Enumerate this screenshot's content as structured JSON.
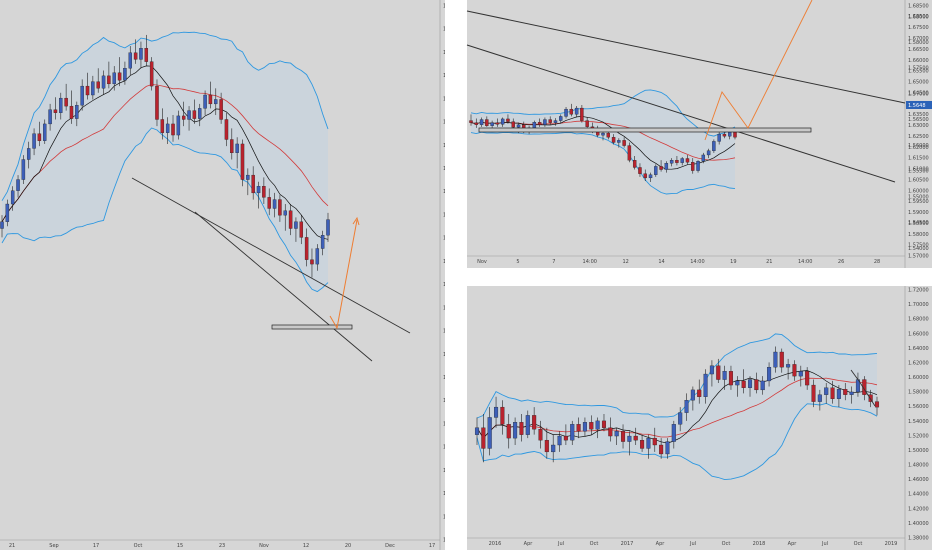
{
  "layout_note": "",
  "chart_data": [
    {
      "id": "left",
      "type": "candlestick",
      "title": "",
      "x_ticks": [
        "21",
        "Sep",
        "17",
        "Oct",
        "15",
        "23",
        "Nov",
        "12",
        "20",
        "Dec",
        "17"
      ],
      "y_ticks": [
        "1.61000",
        "1.60500",
        "1.60000",
        "1.59500",
        "1.59000",
        "1.58500",
        "1.58000",
        "1.57500",
        "1.57000",
        "1.56500",
        "1.56000",
        "1.55500",
        "1.55000",
        "1.54500",
        "1.54000",
        "1.53500",
        "1.53000",
        "1.52500",
        "1.52000",
        "1.51500",
        "1.51000",
        "1.50500",
        "1.50000",
        "1.49500"
      ],
      "ylim": [
        1.4925,
        1.6125
      ],
      "xlim": [
        0,
        110
      ],
      "ohlc": [
        [
          1.5625,
          1.5655,
          1.5605,
          1.564
        ],
        [
          1.564,
          1.569,
          1.563,
          1.568
        ],
        [
          1.568,
          1.572,
          1.5665,
          1.571
        ],
        [
          1.571,
          1.5745,
          1.5695,
          1.5735
        ],
        [
          1.5735,
          1.579,
          1.5725,
          1.578
        ],
        [
          1.578,
          1.582,
          1.576,
          1.5805
        ],
        [
          1.5805,
          1.585,
          1.579,
          1.5838
        ],
        [
          1.5838,
          1.5865,
          1.581,
          1.5822
        ],
        [
          1.5822,
          1.587,
          1.5815,
          1.586
        ],
        [
          1.586,
          1.5905,
          1.5845,
          1.5892
        ],
        [
          1.5892,
          1.592,
          1.587,
          1.5885
        ],
        [
          1.5885,
          1.593,
          1.587,
          1.5918
        ],
        [
          1.5918,
          1.595,
          1.589,
          1.59
        ],
        [
          1.59,
          1.5935,
          1.586,
          1.5872
        ],
        [
          1.5872,
          1.591,
          1.5855,
          1.5902
        ],
        [
          1.5902,
          1.596,
          1.589,
          1.5945
        ],
        [
          1.5945,
          1.5975,
          1.5915,
          1.5925
        ],
        [
          1.5925,
          1.5968,
          1.5915,
          1.5955
        ],
        [
          1.5955,
          1.5985,
          1.593,
          1.594
        ],
        [
          1.594,
          1.598,
          1.5925,
          1.5968
        ],
        [
          1.5968,
          1.6,
          1.594,
          1.595
        ],
        [
          1.595,
          1.599,
          1.5935,
          1.5975
        ],
        [
          1.5975,
          1.601,
          1.5945,
          1.5958
        ],
        [
          1.5958,
          1.6,
          1.5948,
          1.5985
        ],
        [
          1.5985,
          1.6035,
          1.597,
          1.602
        ],
        [
          1.602,
          1.605,
          1.5995,
          1.6005
        ],
        [
          1.6005,
          1.6045,
          1.5985,
          1.603
        ],
        [
          1.603,
          1.606,
          1.599,
          1.6
        ],
        [
          1.6,
          1.601,
          1.5935,
          1.5945
        ],
        [
          1.5945,
          1.596,
          1.5855,
          1.587
        ],
        [
          1.587,
          1.5895,
          1.5825,
          1.584
        ],
        [
          1.584,
          1.5875,
          1.5815,
          1.586
        ],
        [
          1.586,
          1.588,
          1.582,
          1.5835
        ],
        [
          1.5835,
          1.589,
          1.5825,
          1.5878
        ],
        [
          1.5878,
          1.591,
          1.5855,
          1.587
        ],
        [
          1.587,
          1.59,
          1.5845,
          1.589
        ],
        [
          1.589,
          1.5915,
          1.586,
          1.5872
        ],
        [
          1.5872,
          1.5905,
          1.5855,
          1.5895
        ],
        [
          1.5895,
          1.5935,
          1.588,
          1.5925
        ],
        [
          1.5925,
          1.5955,
          1.5895,
          1.5905
        ],
        [
          1.5905,
          1.594,
          1.588,
          1.5915
        ],
        [
          1.5915,
          1.593,
          1.586,
          1.587
        ],
        [
          1.587,
          1.5885,
          1.581,
          1.5825
        ],
        [
          1.5825,
          1.585,
          1.578,
          1.5795
        ],
        [
          1.5795,
          1.583,
          1.576,
          1.5815
        ],
        [
          1.5815,
          1.5825,
          1.572,
          1.5735
        ],
        [
          1.5735,
          1.576,
          1.57,
          1.5745
        ],
        [
          1.5745,
          1.5765,
          1.569,
          1.5705
        ],
        [
          1.5705,
          1.573,
          1.567,
          1.572
        ],
        [
          1.572,
          1.574,
          1.568,
          1.5695
        ],
        [
          1.5695,
          1.5715,
          1.5655,
          1.567
        ],
        [
          1.567,
          1.5705,
          1.565,
          1.569
        ],
        [
          1.569,
          1.57,
          1.564,
          1.5655
        ],
        [
          1.5655,
          1.568,
          1.562,
          1.5665
        ],
        [
          1.5665,
          1.568,
          1.561,
          1.5625
        ],
        [
          1.5625,
          1.565,
          1.5595,
          1.564
        ],
        [
          1.564,
          1.5655,
          1.559,
          1.5605
        ],
        [
          1.5605,
          1.5625,
          1.554,
          1.5555
        ],
        [
          1.5555,
          1.558,
          1.5515,
          1.5545
        ],
        [
          1.5545,
          1.559,
          1.553,
          1.558
        ],
        [
          1.558,
          1.562,
          1.5565,
          1.561
        ],
        [
          1.561,
          1.566,
          1.5595,
          1.5645
        ]
      ],
      "wick_color": "#222222",
      "bull_color": "#3d5fb8",
      "bear_color": "#b8232e"
    },
    {
      "id": "top-right",
      "type": "candlestick",
      "title": "",
      "x_ticks": [
        "Nov",
        "5",
        "7",
        "14:00",
        "12",
        "14",
        "14:00",
        "19",
        "21",
        "14:00",
        "26",
        "28"
      ],
      "y_ticks": [
        "1.68500",
        "1.68000",
        "1.67500",
        "1.67000",
        "1.66500",
        "1.66000",
        "1.65500",
        "1.65000",
        "1.64500",
        "1.64000",
        "1.63500",
        "1.63000",
        "1.62500",
        "1.62000",
        "1.61500",
        "1.61000",
        "1.60500",
        "1.60000",
        "1.59500",
        "1.59000",
        "1.58500",
        "1.58000",
        "1.57500",
        "1.57000"
      ],
      "right_ticks": [
        "1.58500",
        "1.58000",
        "1.57500",
        "1.57000",
        "1.56500",
        "1.56000",
        "1.55500",
        "1.55000",
        "1.54500",
        "1.54000"
      ],
      "price_tag": "1.5648",
      "ylim": [
        1.568,
        1.688
      ],
      "xlim": [
        0,
        110
      ],
      "ohlc": [
        [
          1.633,
          1.636,
          1.6305,
          1.632
        ],
        [
          1.632,
          1.634,
          1.6295,
          1.631
        ],
        [
          1.631,
          1.6345,
          1.63,
          1.6335
        ],
        [
          1.6335,
          1.635,
          1.63,
          1.6305
        ],
        [
          1.6305,
          1.633,
          1.6285,
          1.632
        ],
        [
          1.632,
          1.634,
          1.63,
          1.6312
        ],
        [
          1.6312,
          1.6345,
          1.63,
          1.6338
        ],
        [
          1.6338,
          1.636,
          1.6315,
          1.6325
        ],
        [
          1.6325,
          1.634,
          1.629,
          1.6298
        ],
        [
          1.6298,
          1.632,
          1.627,
          1.631
        ],
        [
          1.631,
          1.6325,
          1.627,
          1.628
        ],
        [
          1.628,
          1.6305,
          1.6265,
          1.6295
        ],
        [
          1.6295,
          1.633,
          1.6285,
          1.6322
        ],
        [
          1.6322,
          1.634,
          1.63,
          1.631
        ],
        [
          1.631,
          1.6345,
          1.63,
          1.6335
        ],
        [
          1.6335,
          1.635,
          1.631,
          1.632
        ],
        [
          1.632,
          1.6342,
          1.6305,
          1.633
        ],
        [
          1.633,
          1.636,
          1.6315,
          1.635
        ],
        [
          1.635,
          1.6395,
          1.634,
          1.6385
        ],
        [
          1.6385,
          1.641,
          1.635,
          1.636
        ],
        [
          1.636,
          1.64,
          1.6345,
          1.639
        ],
        [
          1.639,
          1.6405,
          1.632,
          1.633
        ],
        [
          1.633,
          1.6345,
          1.629,
          1.63
        ],
        [
          1.63,
          1.632,
          1.627,
          1.6285
        ],
        [
          1.6285,
          1.6305,
          1.625,
          1.626
        ],
        [
          1.626,
          1.628,
          1.6235,
          1.627
        ],
        [
          1.627,
          1.6285,
          1.624,
          1.625
        ],
        [
          1.625,
          1.6265,
          1.6215,
          1.6225
        ],
        [
          1.6225,
          1.6245,
          1.62,
          1.6235
        ],
        [
          1.6235,
          1.625,
          1.62,
          1.621
        ],
        [
          1.621,
          1.6225,
          1.613,
          1.614
        ],
        [
          1.614,
          1.616,
          1.6095,
          1.6105
        ],
        [
          1.6105,
          1.6125,
          1.606,
          1.6075
        ],
        [
          1.6075,
          1.6095,
          1.604,
          1.6055
        ],
        [
          1.6055,
          1.608,
          1.6035,
          1.607
        ],
        [
          1.607,
          1.612,
          1.606,
          1.611
        ],
        [
          1.611,
          1.614,
          1.6085,
          1.6095
        ],
        [
          1.6095,
          1.6135,
          1.608,
          1.6125
        ],
        [
          1.6125,
          1.615,
          1.611,
          1.614
        ],
        [
          1.614,
          1.616,
          1.6115,
          1.6128
        ],
        [
          1.6128,
          1.6155,
          1.6115,
          1.6148
        ],
        [
          1.6148,
          1.6165,
          1.612,
          1.613
        ],
        [
          1.613,
          1.615,
          1.6075,
          1.609
        ],
        [
          1.609,
          1.614,
          1.608,
          1.6135
        ],
        [
          1.6135,
          1.6175,
          1.6125,
          1.6165
        ],
        [
          1.6165,
          1.6195,
          1.615,
          1.6185
        ],
        [
          1.6185,
          1.624,
          1.6175,
          1.623
        ],
        [
          1.623,
          1.628,
          1.6215,
          1.6265
        ],
        [
          1.6265,
          1.629,
          1.6245,
          1.6255
        ],
        [
          1.6255,
          1.6285,
          1.624,
          1.6275
        ],
        [
          1.6275,
          1.629,
          1.624,
          1.625
        ]
      ],
      "wick_color": "#222222",
      "bull_color": "#3d5fb8",
      "bear_color": "#b8232e"
    },
    {
      "id": "bottom-right",
      "type": "candlestick",
      "title": "",
      "x_ticks": [
        "2016",
        "Apr",
        "Jul",
        "Oct",
        "2017",
        "Apr",
        "Jul",
        "Oct",
        "2018",
        "Apr",
        "Jul",
        "Oct",
        "2019"
      ],
      "y_ticks": [
        "1.72000",
        "1.70000",
        "1.68000",
        "1.66000",
        "1.64000",
        "1.62000",
        "1.60000",
        "1.58000",
        "1.56000",
        "1.54000",
        "1.52000",
        "1.50000",
        "1.48000",
        "1.46000",
        "1.44000",
        "1.42000",
        "1.40000",
        "1.38000"
      ],
      "ylim": [
        1.37,
        1.73
      ],
      "xlim": [
        0,
        100
      ],
      "ohlc": [
        [
          1.52,
          1.545,
          1.505,
          1.53
        ],
        [
          1.53,
          1.55,
          1.48,
          1.5
        ],
        [
          1.5,
          1.56,
          1.49,
          1.545
        ],
        [
          1.545,
          1.575,
          1.53,
          1.56
        ],
        [
          1.56,
          1.57,
          1.52,
          1.535
        ],
        [
          1.535,
          1.55,
          1.5,
          1.515
        ],
        [
          1.515,
          1.545,
          1.505,
          1.538
        ],
        [
          1.538,
          1.55,
          1.51,
          1.52
        ],
        [
          1.52,
          1.555,
          1.515,
          1.548
        ],
        [
          1.548,
          1.56,
          1.52,
          1.528
        ],
        [
          1.528,
          1.54,
          1.5,
          1.512
        ],
        [
          1.512,
          1.53,
          1.485,
          1.495
        ],
        [
          1.495,
          1.52,
          1.48,
          1.505
        ],
        [
          1.505,
          1.525,
          1.495,
          1.518
        ],
        [
          1.518,
          1.535,
          1.505,
          1.512
        ],
        [
          1.512,
          1.54,
          1.505,
          1.535
        ],
        [
          1.535,
          1.545,
          1.515,
          1.525
        ],
        [
          1.525,
          1.545,
          1.518,
          1.538
        ],
        [
          1.538,
          1.548,
          1.52,
          1.528
        ],
        [
          1.528,
          1.545,
          1.515,
          1.54
        ],
        [
          1.54,
          1.55,
          1.525,
          1.53
        ],
        [
          1.53,
          1.545,
          1.51,
          1.518
        ],
        [
          1.518,
          1.53,
          1.505,
          1.525
        ],
        [
          1.525,
          1.535,
          1.5,
          1.51
        ],
        [
          1.51,
          1.525,
          1.49,
          1.518
        ],
        [
          1.518,
          1.53,
          1.505,
          1.512
        ],
        [
          1.512,
          1.52,
          1.495,
          1.5
        ],
        [
          1.5,
          1.52,
          1.485,
          1.515
        ],
        [
          1.515,
          1.53,
          1.495,
          1.505
        ],
        [
          1.505,
          1.515,
          1.485,
          1.492
        ],
        [
          1.492,
          1.515,
          1.485,
          1.51
        ],
        [
          1.51,
          1.54,
          1.5,
          1.535
        ],
        [
          1.535,
          1.56,
          1.525,
          1.552
        ],
        [
          1.552,
          1.58,
          1.54,
          1.57
        ],
        [
          1.57,
          1.59,
          1.555,
          1.585
        ],
        [
          1.585,
          1.6,
          1.565,
          1.575
        ],
        [
          1.575,
          1.615,
          1.565,
          1.608
        ],
        [
          1.608,
          1.628,
          1.59,
          1.62
        ],
        [
          1.62,
          1.63,
          1.595,
          1.6
        ],
        [
          1.6,
          1.62,
          1.585,
          1.612
        ],
        [
          1.612,
          1.62,
          1.585,
          1.592
        ],
        [
          1.592,
          1.605,
          1.575,
          1.598
        ],
        [
          1.598,
          1.615,
          1.58,
          1.588
        ],
        [
          1.588,
          1.605,
          1.575,
          1.6
        ],
        [
          1.6,
          1.61,
          1.58,
          1.585
        ],
        [
          1.585,
          1.605,
          1.578,
          1.598
        ],
        [
          1.598,
          1.625,
          1.59,
          1.618
        ],
        [
          1.618,
          1.648,
          1.61,
          1.64
        ],
        [
          1.64,
          1.645,
          1.61,
          1.618
        ],
        [
          1.618,
          1.63,
          1.6,
          1.622
        ],
        [
          1.622,
          1.628,
          1.598,
          1.605
        ],
        [
          1.605,
          1.62,
          1.59,
          1.612
        ],
        [
          1.612,
          1.618,
          1.585,
          1.592
        ],
        [
          1.592,
          1.6,
          1.56,
          1.568
        ],
        [
          1.568,
          1.585,
          1.555,
          1.578
        ],
        [
          1.578,
          1.595,
          1.565,
          1.588
        ],
        [
          1.588,
          1.598,
          1.565,
          1.572
        ],
        [
          1.572,
          1.592,
          1.56,
          1.586
        ],
        [
          1.586,
          1.595,
          1.57,
          1.578
        ],
        [
          1.578,
          1.59,
          1.565,
          1.582
        ],
        [
          1.582,
          1.61,
          1.575,
          1.6
        ],
        [
          1.6,
          1.605,
          1.57,
          1.578
        ],
        [
          1.578,
          1.585,
          1.56,
          1.568
        ],
        [
          1.568,
          1.575,
          1.548,
          1.56
        ]
      ],
      "wick_color": "#222222",
      "bull_color": "#3d5fb8",
      "bear_color": "#b8232e"
    }
  ],
  "colors": {
    "panel_bg": "#d6d6d6",
    "band": "#2f98e0",
    "band_fill": "#c9d3dd",
    "ma_red": "#d23b3b",
    "ma_black": "#111111",
    "trendline": "#333333",
    "projection": "#ee7d32",
    "price_tag_bg": "#2c63b8"
  }
}
